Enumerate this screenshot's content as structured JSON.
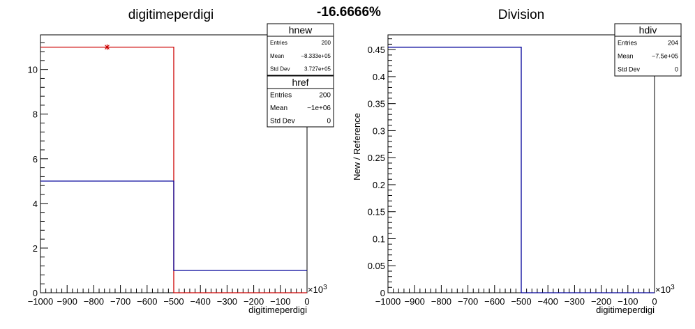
{
  "header": {
    "percent_label": "-16.6666%"
  },
  "chart_data": [
    {
      "type": "histogram",
      "title": "digitimeperdigi",
      "xlabel": "digitimeperdigi",
      "ylabel": "",
      "x_exponent_label": "×10",
      "x_exponent_power": "3",
      "xlim": [
        -1000,
        0
      ],
      "ylim": [
        0,
        11.55
      ],
      "x_tick_labels": [
        "−1000",
        "−900",
        "−800",
        "−700",
        "−600",
        "−500",
        "−400",
        "−300",
        "−200",
        "−100",
        "0"
      ],
      "x_ticks": [
        -1000,
        -900,
        -800,
        -700,
        -600,
        -500,
        -400,
        -300,
        -200,
        -100,
        0
      ],
      "y_tick_labels": [
        "0",
        "2",
        "4",
        "6",
        "8",
        "10"
      ],
      "y_ticks": [
        0,
        2,
        4,
        6,
        8,
        10
      ],
      "series": [
        {
          "name": "hnew",
          "color": "#cc0000",
          "bin_edges": [
            -1000,
            -500,
            0
          ],
          "values": [
            11,
            0
          ],
          "marker_x": -750,
          "marker_y": 11
        },
        {
          "name": "href",
          "color": "#000099",
          "bin_edges": [
            -1000,
            -500,
            0
          ],
          "values": [
            5,
            1
          ]
        }
      ],
      "stats_boxes": [
        {
          "title": "hnew",
          "rows": [
            {
              "label": "Entries",
              "value": "200"
            },
            {
              "label": "Mean",
              "value": "−8.333e+05"
            },
            {
              "label": "Std Dev",
              "value": "3.727e+05"
            }
          ]
        },
        {
          "title": "href",
          "rows": [
            {
              "label": "Entries",
              "value": "200"
            },
            {
              "label": "Mean",
              "value": "−1e+06"
            },
            {
              "label": "Std Dev",
              "value": "0"
            }
          ]
        }
      ]
    },
    {
      "type": "histogram",
      "title": "Division",
      "xlabel": "digitimeperdigi",
      "ylabel": "New / Reference",
      "x_exponent_label": "×10",
      "x_exponent_power": "3",
      "xlim": [
        -1000,
        0
      ],
      "ylim": [
        0,
        0.4773
      ],
      "x_tick_labels": [
        "−1000",
        "−900",
        "−800",
        "−700",
        "−600",
        "−500",
        "−400",
        "−300",
        "−200",
        "−100",
        "0"
      ],
      "x_ticks": [
        -1000,
        -900,
        -800,
        -700,
        -600,
        -500,
        -400,
        -300,
        -200,
        -100,
        0
      ],
      "y_tick_labels": [
        "0",
        "0.05",
        "0.1",
        "0.15",
        "0.2",
        "0.25",
        "0.3",
        "0.35",
        "0.4",
        "0.45"
      ],
      "y_ticks": [
        0,
        0.05,
        0.1,
        0.15,
        0.2,
        0.25,
        0.3,
        0.35,
        0.4,
        0.45
      ],
      "series": [
        {
          "name": "hdiv",
          "color": "#000099",
          "bin_edges": [
            -1000,
            -500,
            0
          ],
          "values": [
            0.4545,
            0
          ]
        }
      ],
      "stats_boxes": [
        {
          "title": "hdiv",
          "rows": [
            {
              "label": "Entries",
              "value": "204"
            },
            {
              "label": "Mean",
              "value": "−7.5e+05"
            },
            {
              "label": "Std Dev",
              "value": "0"
            }
          ]
        }
      ]
    }
  ]
}
